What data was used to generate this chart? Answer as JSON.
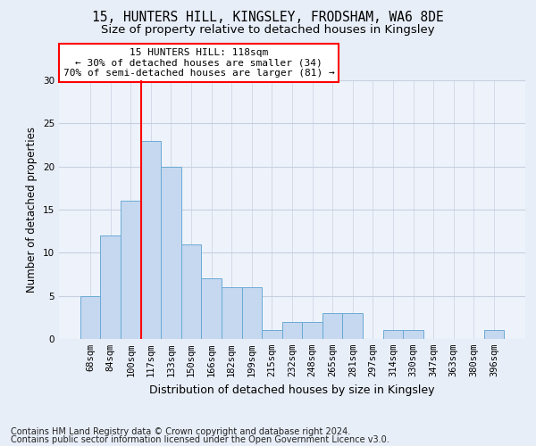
{
  "title1": "15, HUNTERS HILL, KINGSLEY, FRODSHAM, WA6 8DE",
  "title2": "Size of property relative to detached houses in Kingsley",
  "xlabel": "Distribution of detached houses by size in Kingsley",
  "ylabel": "Number of detached properties",
  "categories": [
    "68sqm",
    "84sqm",
    "100sqm",
    "117sqm",
    "133sqm",
    "150sqm",
    "166sqm",
    "182sqm",
    "199sqm",
    "215sqm",
    "232sqm",
    "248sqm",
    "265sqm",
    "281sqm",
    "297sqm",
    "314sqm",
    "330sqm",
    "347sqm",
    "363sqm",
    "380sqm",
    "396sqm"
  ],
  "values": [
    5,
    12,
    16,
    23,
    20,
    11,
    7,
    6,
    6,
    1,
    2,
    2,
    3,
    3,
    0,
    1,
    1,
    0,
    0,
    0,
    1
  ],
  "bar_color": "#c5d8f0",
  "bar_edge_color": "#6aaad4",
  "highlight_bar_idx": 3,
  "annotation_title": "15 HUNTERS HILL: 118sqm",
  "annotation_line1": "← 30% of detached houses are smaller (34)",
  "annotation_line2": "70% of semi-detached houses are larger (81) →",
  "annotation_box_color": "white",
  "annotation_box_edge_color": "red",
  "vline_color": "red",
  "ylim": [
    0,
    30
  ],
  "yticks": [
    0,
    5,
    10,
    15,
    20,
    25,
    30
  ],
  "footer1": "Contains HM Land Registry data © Crown copyright and database right 2024.",
  "footer2": "Contains public sector information licensed under the Open Government Licence v3.0.",
  "bg_color": "#e8eef8",
  "plot_bg_color": "#eef3fb",
  "grid_color": "#c8d0e0",
  "title1_fontsize": 10.5,
  "title2_fontsize": 9.5,
  "xlabel_fontsize": 9,
  "ylabel_fontsize": 8.5,
  "tick_fontsize": 7.5,
  "footer_fontsize": 7
}
